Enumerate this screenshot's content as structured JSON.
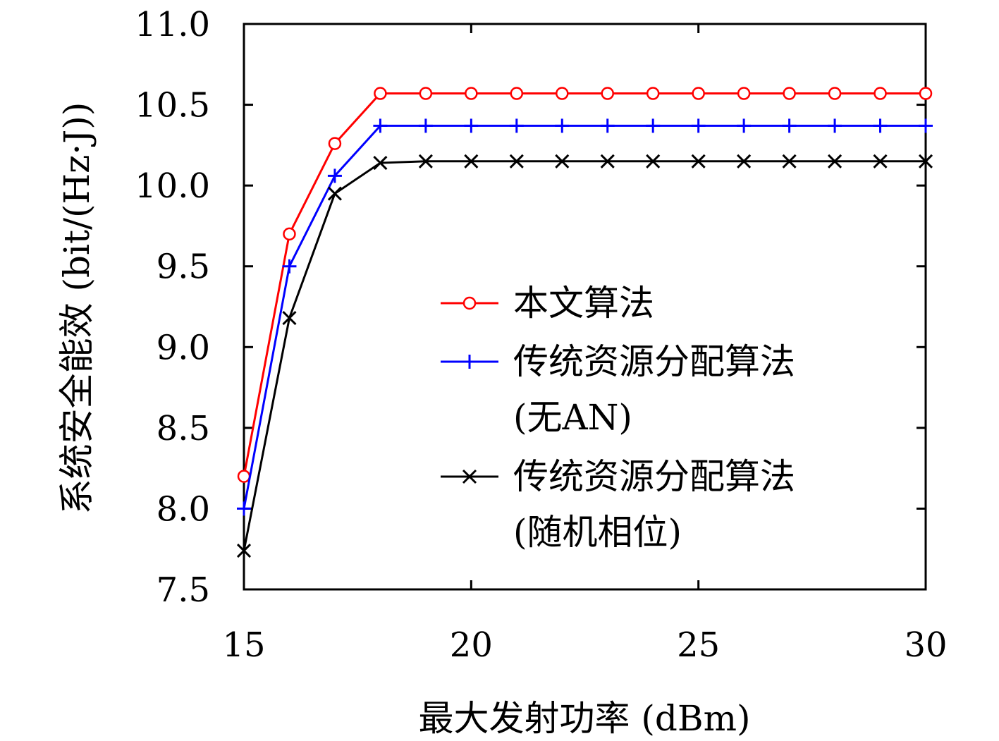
{
  "chart_data": {
    "type": "line",
    "xlabel": "最大发射功率 (dBm)",
    "ylabel": "系统安全能效 (bit/(Hz·J))",
    "xlim": [
      15,
      30
    ],
    "ylim": [
      7.5,
      11.0
    ],
    "xticks": [
      15,
      20,
      25,
      30
    ],
    "xtick_labels": [
      "15",
      "20",
      "25",
      "30"
    ],
    "yticks": [
      7.5,
      8.0,
      8.5,
      9.0,
      9.5,
      10.0,
      10.5,
      11.0
    ],
    "ytick_labels": [
      "7.5",
      "8.0",
      "8.5",
      "9.0",
      "9.5",
      "10.0",
      "10.5",
      "11.0"
    ],
    "grid": false,
    "legend_position": "center-right",
    "x": [
      15,
      16,
      17,
      18,
      19,
      20,
      21,
      22,
      23,
      24,
      25,
      26,
      27,
      28,
      29,
      30
    ],
    "series": [
      {
        "name_lines": [
          "本文算法"
        ],
        "color": "#ff0000",
        "marker": "circle",
        "values": [
          8.2,
          9.7,
          10.26,
          10.57,
          10.57,
          10.57,
          10.57,
          10.57,
          10.57,
          10.57,
          10.57,
          10.57,
          10.57,
          10.57,
          10.57,
          10.57
        ]
      },
      {
        "name_lines": [
          "传统资源分配算法",
          "(无AN)"
        ],
        "color": "#0000ff",
        "marker": "plus",
        "values": [
          8.0,
          9.5,
          10.06,
          10.37,
          10.37,
          10.37,
          10.37,
          10.37,
          10.37,
          10.37,
          10.37,
          10.37,
          10.37,
          10.37,
          10.37,
          10.37
        ]
      },
      {
        "name_lines": [
          "传统资源分配算法",
          "(随机相位)"
        ],
        "color": "#000000",
        "marker": "cross",
        "values": [
          7.74,
          9.18,
          9.95,
          10.14,
          10.15,
          10.15,
          10.15,
          10.15,
          10.15,
          10.15,
          10.15,
          10.15,
          10.15,
          10.15,
          10.15,
          10.15
        ]
      }
    ]
  }
}
